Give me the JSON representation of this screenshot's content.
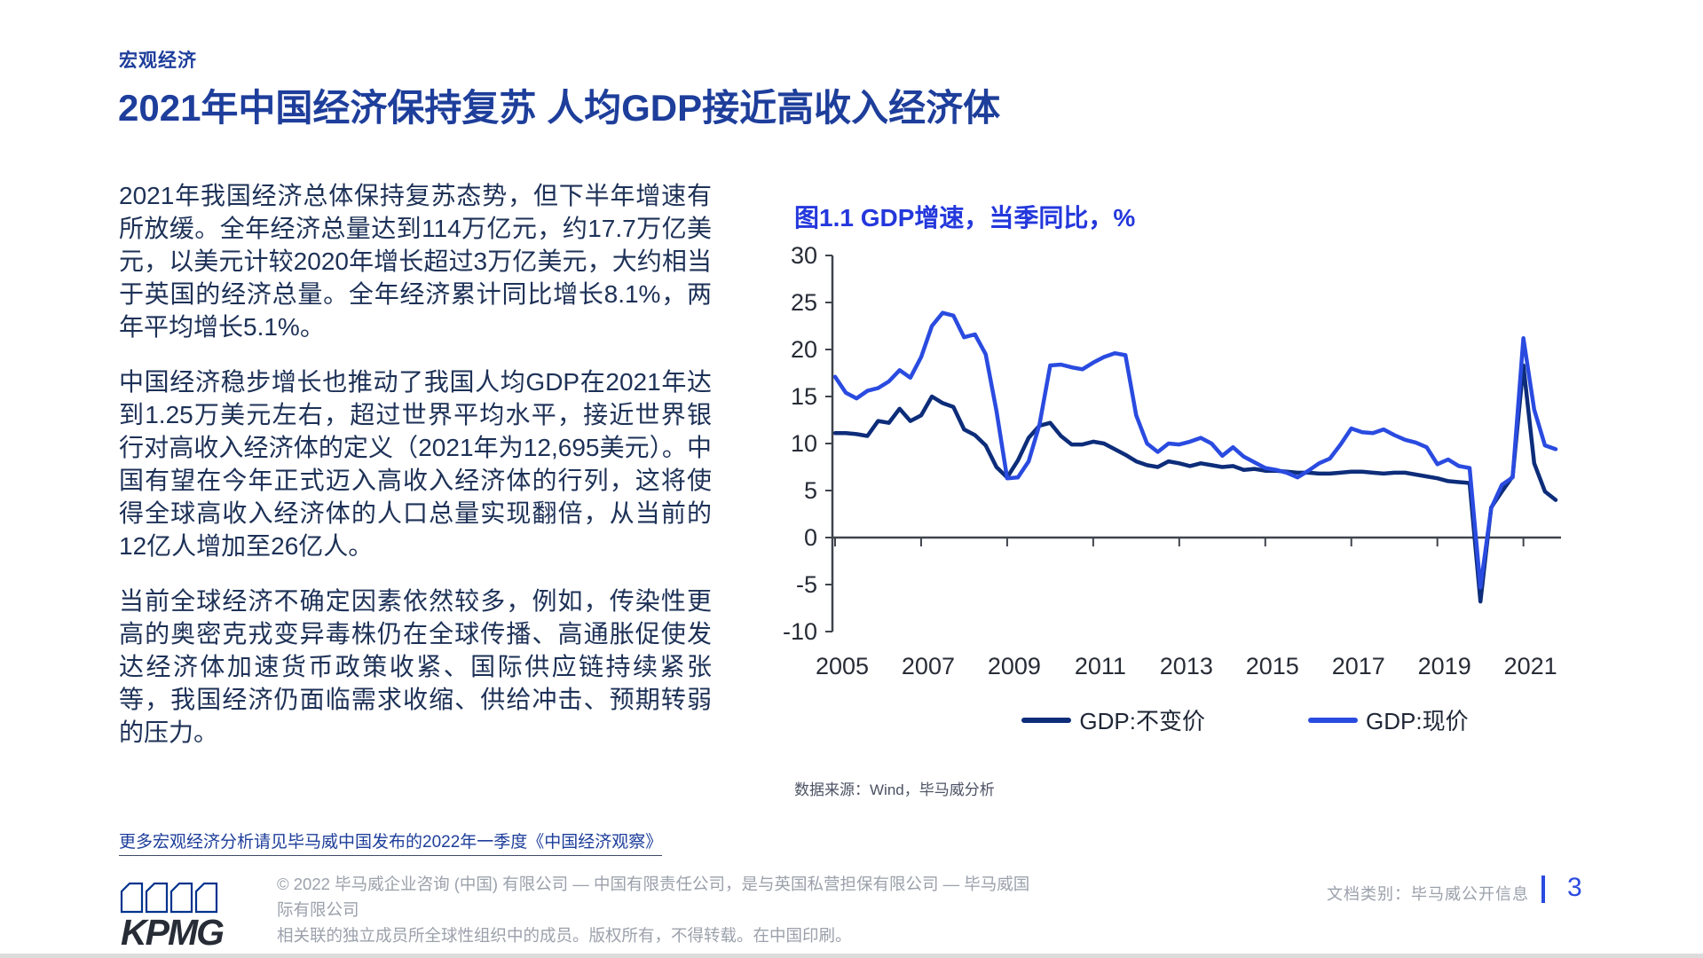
{
  "article": {
    "eyebrow": "宏观经济",
    "title": "2021年中国经济保持复苏 人均GDP接近高收入经济体",
    "paragraphs": [
      "2021年我国经济总体保持复苏态势，但下半年增速有所放缓。全年经济总量达到114万亿元，约17.7万亿美元，以美元计较2020年增长超过3万亿美元，大约相当于英国的经济总量。全年经济累计同比增长8.1%，两年平均增长5.1%。",
      "中国经济稳步增长也推动了我国人均GDP在2021年达到1.25万美元左右，超过世界平均水平，接近世界银行对高收入经济体的定义（2021年为12,695美元）。中国有望在今年正式迈入高收入经济体的行列，这将使得全球高收入经济体的人口总量实现翻倍，从当前的12亿人增加至26亿人。",
      "当前全球经济不确定因素依然较多，例如，传染性更高的奥密克戎变异毒株仍在全球传播、高通胀促使发达经济体加速货币政策收紧、国际供应链持续紧张等，我国经济仍面临需求收缩、供给冲击、预期转弱的压力。"
    ],
    "more_link": "更多宏观经济分析请见毕马威中国发布的2022年一季度《中国经济观察》"
  },
  "figure": {
    "title": "图1.1 GDP增速，当季同比，%",
    "source": "数据来源：Wind，毕马威分析"
  },
  "chart_data": {
    "type": "line",
    "title": "图1.1 GDP增速，当季同比，%",
    "x_unit": "quarter",
    "x_start": "2005Q1",
    "x_end": "2021Q4",
    "ylim": [
      -10,
      30
    ],
    "yticks": [
      30,
      25,
      20,
      15,
      10,
      5,
      0,
      -5,
      -10
    ],
    "xtick_years": [
      2005,
      2007,
      2009,
      2011,
      2013,
      2015,
      2017,
      2019,
      2021
    ],
    "grid": false,
    "legend_position": "bottom",
    "axis_color": "#3f444d",
    "series": [
      {
        "name": "GDP:不变价",
        "color": "#0d2d7a",
        "values": [
          11.1,
          11.1,
          11.0,
          10.8,
          12.4,
          12.2,
          13.7,
          12.4,
          13.0,
          15.0,
          14.3,
          13.9,
          11.5,
          10.9,
          9.8,
          7.5,
          6.4,
          8.2,
          10.6,
          11.9,
          12.2,
          10.8,
          9.9,
          9.9,
          10.2,
          10.0,
          9.4,
          8.8,
          8.1,
          7.7,
          7.5,
          8.1,
          7.9,
          7.6,
          7.9,
          7.7,
          7.5,
          7.6,
          7.2,
          7.3,
          7.1,
          7.1,
          7.0,
          6.9,
          6.9,
          6.8,
          6.8,
          6.9,
          7.0,
          7.0,
          6.9,
          6.8,
          6.9,
          6.9,
          6.7,
          6.5,
          6.3,
          6.0,
          5.9,
          5.8,
          -6.8,
          3.2,
          4.9,
          6.5,
          18.3,
          7.9,
          4.9,
          4.0
        ]
      },
      {
        "name": "GDP:现价",
        "color": "#2a4be0",
        "values": [
          17.1,
          15.4,
          14.8,
          15.6,
          15.9,
          16.6,
          17.8,
          17.0,
          19.2,
          22.5,
          23.9,
          23.6,
          21.3,
          21.6,
          19.5,
          13.5,
          6.3,
          6.4,
          8.1,
          12.0,
          18.3,
          18.4,
          18.1,
          17.9,
          18.6,
          19.2,
          19.6,
          19.4,
          13.0,
          10.0,
          9.1,
          10.0,
          9.9,
          10.2,
          10.6,
          10.0,
          8.7,
          9.6,
          8.6,
          8.0,
          7.4,
          7.2,
          6.9,
          6.4,
          7.1,
          7.9,
          8.4,
          9.9,
          11.6,
          11.2,
          11.1,
          11.5,
          10.9,
          10.4,
          10.1,
          9.6,
          7.8,
          8.3,
          7.6,
          7.4,
          -5.3,
          3.1,
          5.6,
          6.4,
          21.2,
          13.6,
          9.8,
          9.4
        ]
      }
    ],
    "source": "数据来源：Wind，毕马威分析"
  },
  "footer": {
    "logo_text": "KPMG",
    "copyright_line1": "© 2022 毕马威企业咨询 (中国) 有限公司 — 中国有限责任公司，是与英国私营担保有限公司 — 毕马威国际有限公司",
    "copyright_line2": "相关联的独立成员所全球性组织中的成员。版权所有，不得转载。在中国印刷。",
    "doc_class": "文档类别：毕马威公开信息",
    "page_number": "3"
  },
  "colors": {
    "kpmg_blue": "#00338D",
    "title_blue": "#1e3e9b",
    "chart_title_blue": "#2438dc",
    "line_constant_price": "#0d2d7a",
    "line_current_price": "#2a4be0",
    "accent_page_number": "#2a4be0"
  }
}
